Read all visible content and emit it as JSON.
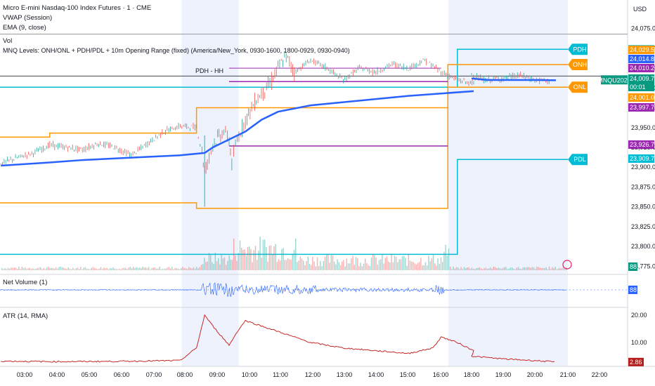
{
  "legend": {
    "symbol": "Micro E-mini Nasdaq-100 Index Futures · 1 · CME",
    "vwap": "VWAP (Session)",
    "ema": "EMA (9, close)",
    "vol": "Vol",
    "levels": "MNQ Levels: ONH/ONL + PDH/PDL + 10m Opening Range (fixed) (America/New_York, 0930-1600, 1800-0929, 0930-0940)"
  },
  "currency": "USD",
  "panes": {
    "net_volume_label": "Net Volume (1)",
    "atr_label": "ATR (14, RMA)"
  },
  "annotation_pdh_hh": "PDH - HH",
  "colors": {
    "candle_up": "#26a69a",
    "candle_down": "#ef5350",
    "vwap": "#2962ff",
    "pdh_pdl": "#00bcd4",
    "onh_onl": "#ff9800",
    "opening_range": "#9c27b0",
    "session_shade": "#eef2fc",
    "atr_line": "#c62828",
    "net_volume": "#2962ff"
  },
  "chart_data": {
    "type": "line",
    "title": "Micro E-mini Nasdaq-100 Index Futures · 1 · CME",
    "x_ticks": [
      "03:00",
      "04:00",
      "05:00",
      "06:00",
      "07:00",
      "08:00",
      "09:00",
      "10:00",
      "11:00",
      "12:00",
      "13:00",
      "14:00",
      "15:00",
      "16:00",
      "18:00",
      "19:00",
      "20:00",
      "21:00",
      "22:00"
    ],
    "y_ticks": [
      "24,075.00",
      "24,050.00",
      "24,025.00",
      "24,000.00",
      "23,975.00",
      "23,950.00",
      "23,925.00",
      "23,900.00",
      "23,875.00",
      "23,850.00",
      "23,825.00",
      "23,800.00",
      "23,775.00"
    ],
    "ylim": [
      23770,
      24080
    ],
    "series": [
      {
        "name": "Price",
        "values": [
          [
            "02:30",
            23905
          ],
          [
            "03:00",
            23912
          ],
          [
            "03:30",
            23918
          ],
          [
            "04:00",
            23928
          ],
          [
            "04:30",
            23925
          ],
          [
            "05:00",
            23922
          ],
          [
            "05:30",
            23930
          ],
          [
            "06:00",
            23925
          ],
          [
            "06:30",
            23915
          ],
          [
            "07:00",
            23930
          ],
          [
            "07:30",
            23945
          ],
          [
            "08:00",
            23952
          ],
          [
            "08:30",
            23950
          ],
          [
            "08:40",
            23920
          ],
          [
            "08:45",
            23895
          ],
          [
            "08:50",
            23905
          ],
          [
            "09:00",
            23930
          ],
          [
            "09:20",
            23945
          ],
          [
            "09:30",
            23935
          ],
          [
            "09:35",
            23905
          ],
          [
            "09:45",
            23935
          ],
          [
            "10:00",
            23960
          ],
          [
            "10:20",
            23985
          ],
          [
            "10:45",
            24005
          ],
          [
            "11:00",
            24025
          ],
          [
            "11:15",
            24040
          ],
          [
            "11:30",
            24020
          ],
          [
            "12:00",
            24035
          ],
          [
            "12:30",
            24025
          ],
          [
            "13:00",
            24010
          ],
          [
            "13:30",
            24025
          ],
          [
            "14:00",
            24020
          ],
          [
            "14:30",
            24030
          ],
          [
            "15:00",
            24025
          ],
          [
            "15:30",
            24035
          ],
          [
            "16:00",
            24020
          ],
          [
            "16:30",
            24010
          ],
          [
            "17:00",
            24005
          ],
          [
            "18:00",
            24018
          ],
          [
            "18:20",
            24010
          ],
          [
            "19:00",
            24012
          ],
          [
            "19:30",
            24016
          ],
          [
            "20:00",
            24010
          ],
          [
            "20:30",
            24009
          ]
        ]
      },
      {
        "name": "VWAP (Session)",
        "values": [
          [
            "02:30",
            23902
          ],
          [
            "04:00",
            23906
          ],
          [
            "05:00",
            23909
          ],
          [
            "06:00",
            23911
          ],
          [
            "07:00",
            23913
          ],
          [
            "08:00",
            23915
          ],
          [
            "08:45",
            23918
          ],
          [
            "09:00",
            23925
          ],
          [
            "09:30",
            23935
          ],
          [
            "10:00",
            23945
          ],
          [
            "10:30",
            23960
          ],
          [
            "11:00",
            23970
          ],
          [
            "12:00",
            23978
          ],
          [
            "13:00",
            23982
          ],
          [
            "14:00",
            23986
          ],
          [
            "15:00",
            23990
          ],
          [
            "16:00",
            23993
          ],
          [
            "17:00",
            23996
          ],
          [
            "18:00",
            24012
          ],
          [
            "18:30",
            24010
          ],
          [
            "19:00",
            24010
          ],
          [
            "20:00",
            24010
          ],
          [
            "20:40",
            24009.75
          ]
        ]
      }
    ],
    "levels": [
      {
        "name": "PDH",
        "value": 24048.75,
        "color": "#00bcd4"
      },
      {
        "name": "ONH",
        "value": 24029.5,
        "color": "#ff9800"
      },
      {
        "name": "ONL",
        "value": 24001.0,
        "color": "#ff9800"
      },
      {
        "name": "PDL",
        "value": 23909.75,
        "color": "#00bcd4"
      }
    ],
    "price_tags": [
      {
        "text": "24,048.75",
        "color": "#00bcd4"
      },
      {
        "text": "24,029.50",
        "color": "#ff9800"
      },
      {
        "text": "24,014.80",
        "color": "#2962ff"
      },
      {
        "text": "24,010.21",
        "color": "#9c27b0"
      },
      {
        "text": "24,009.75",
        "color": "#089981"
      },
      {
        "text": "00:01",
        "color": "#089981"
      },
      {
        "text": "24,001.00",
        "color": "#ff9800"
      },
      {
        "text": "23,997.75",
        "color": "#9c27b0"
      },
      {
        "text": "23,926.75",
        "color": "#9c27b0"
      },
      {
        "text": "23,909.75",
        "color": "#00bcd4"
      }
    ],
    "symbol_tag": "MNQU2025",
    "net_volume_value": "88",
    "volume_value": "88",
    "atr": {
      "y_ticks": [
        "20.00",
        "10.00"
      ],
      "current": "2.86",
      "values": [
        [
          "02:30",
          3.2
        ],
        [
          "04:00",
          3.0
        ],
        [
          "06:00",
          3.1
        ],
        [
          "08:00",
          3.4
        ],
        [
          "08:30",
          8
        ],
        [
          "08:45",
          20
        ],
        [
          "09:00",
          16
        ],
        [
          "09:30",
          9
        ],
        [
          "09:45",
          14
        ],
        [
          "10:00",
          18
        ],
        [
          "11:00",
          14
        ],
        [
          "12:00",
          10
        ],
        [
          "13:00",
          8
        ],
        [
          "14:00",
          7
        ],
        [
          "15:00",
          6
        ],
        [
          "15:45",
          8
        ],
        [
          "16:00",
          12
        ],
        [
          "16:30",
          10
        ],
        [
          "17:00",
          7
        ],
        [
          "18:00",
          5
        ],
        [
          "19:00",
          4
        ],
        [
          "20:00",
          3.4
        ],
        [
          "20:40",
          2.86
        ]
      ]
    }
  }
}
